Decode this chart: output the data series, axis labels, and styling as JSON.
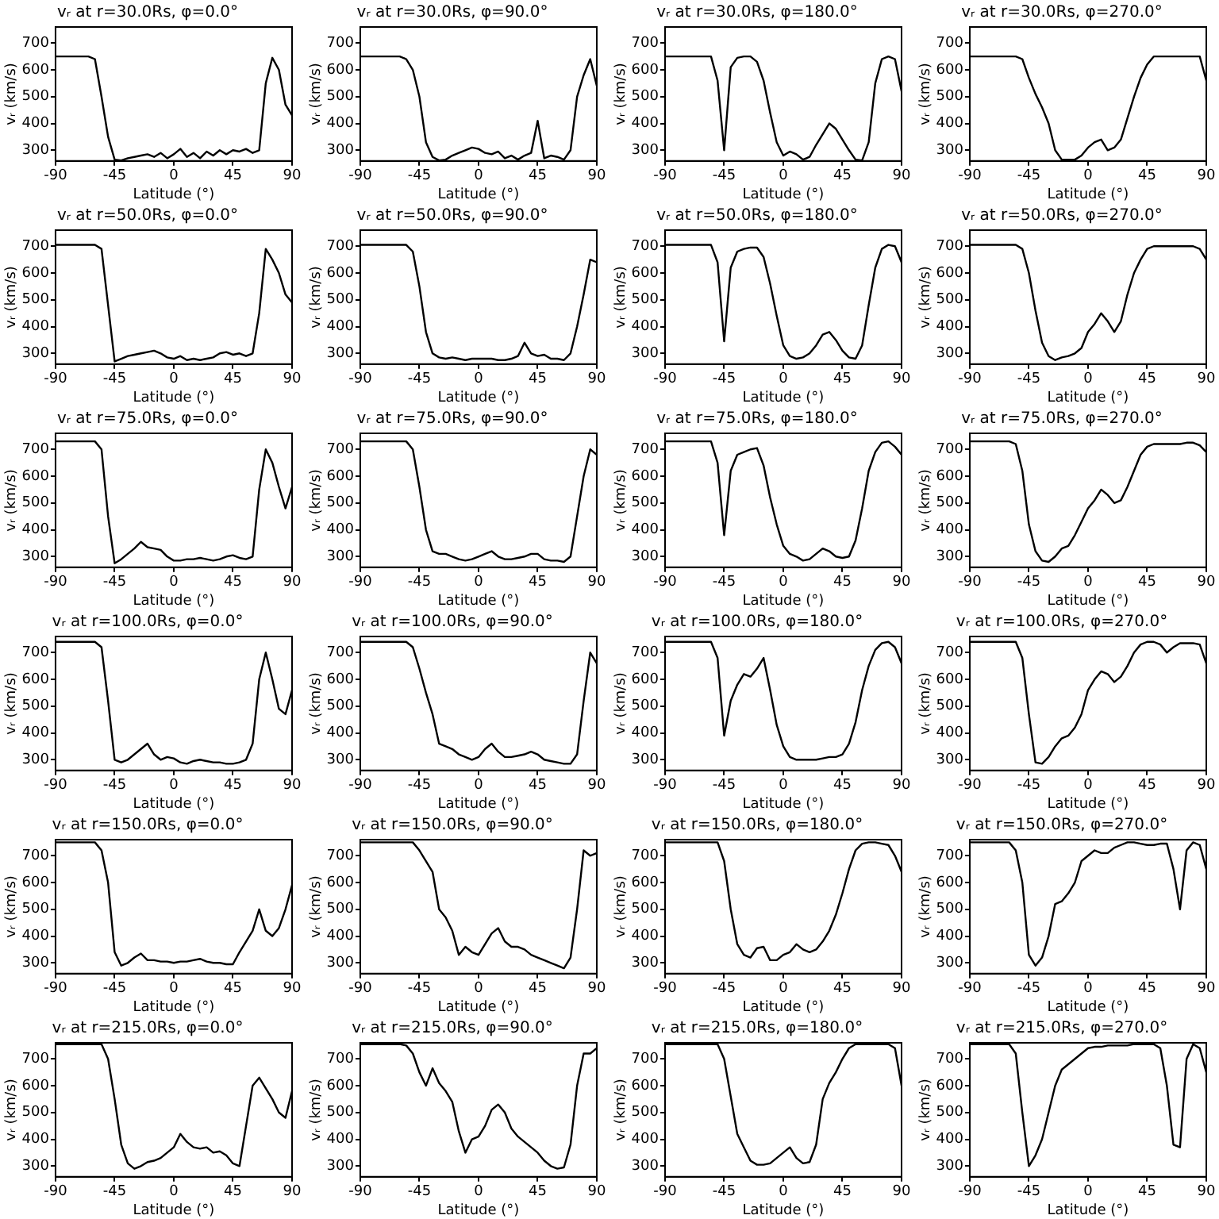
{
  "chart_data": [
    {
      "type": "line",
      "title": "vᵣ at r=30.0Rs, φ=0.0°",
      "xlabel": "Latitude (°)",
      "ylabel": "vᵣ (km/s)",
      "xlim": [
        -90,
        90
      ],
      "xticks": [
        -90,
        -45,
        0,
        45,
        90
      ],
      "ylim": [
        260,
        760
      ],
      "yticks": [
        300,
        400,
        500,
        600,
        700
      ],
      "color": "#000000",
      "x": [
        -90,
        -85,
        -80,
        -75,
        -70,
        -65,
        -60,
        -55,
        -50,
        -45,
        -40,
        -35,
        -30,
        -25,
        -20,
        -15,
        -10,
        -5,
        0,
        5,
        10,
        15,
        20,
        25,
        30,
        35,
        40,
        45,
        50,
        55,
        60,
        65,
        70,
        75,
        80,
        85,
        90
      ],
      "values": [
        650,
        650,
        650,
        650,
        650,
        650,
        640,
        500,
        350,
        265,
        262,
        270,
        275,
        280,
        285,
        275,
        290,
        270,
        285,
        305,
        275,
        290,
        270,
        295,
        280,
        300,
        285,
        300,
        295,
        305,
        290,
        300,
        550,
        645,
        600,
        470,
        430
      ]
    },
    {
      "type": "line",
      "title": "vᵣ at r=30.0Rs, φ=90.0°",
      "xlabel": "Latitude (°)",
      "ylabel": "vᵣ (km/s)",
      "xlim": [
        -90,
        90
      ],
      "xticks": [
        -90,
        -45,
        0,
        45,
        90
      ],
      "ylim": [
        260,
        760
      ],
      "yticks": [
        300,
        400,
        500,
        600,
        700
      ],
      "color": "#000000",
      "x": [
        -90,
        -85,
        -80,
        -75,
        -70,
        -65,
        -60,
        -55,
        -50,
        -45,
        -40,
        -35,
        -30,
        -25,
        -20,
        -15,
        -10,
        -5,
        0,
        5,
        10,
        15,
        20,
        25,
        30,
        35,
        40,
        45,
        50,
        55,
        60,
        65,
        70,
        75,
        80,
        85,
        90
      ],
      "values": [
        650,
        650,
        650,
        650,
        650,
        650,
        650,
        640,
        600,
        500,
        330,
        275,
        262,
        265,
        280,
        290,
        300,
        310,
        305,
        290,
        285,
        295,
        270,
        280,
        265,
        280,
        290,
        410,
        270,
        280,
        275,
        265,
        300,
        500,
        580,
        640,
        540
      ]
    },
    {
      "type": "line",
      "title": "vᵣ at r=30.0Rs, φ=180.0°",
      "xlabel": "Latitude (°)",
      "ylabel": "vᵣ (km/s)",
      "xlim": [
        -90,
        90
      ],
      "xticks": [
        -90,
        -45,
        0,
        45,
        90
      ],
      "ylim": [
        260,
        760
      ],
      "yticks": [
        300,
        400,
        500,
        600,
        700
      ],
      "color": "#000000",
      "x": [
        -90,
        -85,
        -80,
        -75,
        -70,
        -65,
        -60,
        -55,
        -50,
        -45,
        -40,
        -35,
        -30,
        -25,
        -20,
        -15,
        -10,
        -5,
        0,
        5,
        10,
        15,
        20,
        25,
        30,
        35,
        40,
        45,
        50,
        55,
        60,
        65,
        70,
        75,
        80,
        85,
        90
      ],
      "values": [
        650,
        650,
        650,
        650,
        650,
        650,
        650,
        650,
        560,
        300,
        610,
        645,
        650,
        650,
        630,
        560,
        440,
        330,
        280,
        295,
        285,
        265,
        275,
        320,
        360,
        400,
        380,
        340,
        300,
        265,
        262,
        330,
        550,
        640,
        650,
        640,
        520
      ]
    },
    {
      "type": "line",
      "title": "vᵣ at r=30.0Rs, φ=270.0°",
      "xlabel": "Latitude (°)",
      "ylabel": "vᵣ (km/s)",
      "xlim": [
        -90,
        90
      ],
      "xticks": [
        -90,
        -45,
        0,
        45,
        90
      ],
      "ylim": [
        260,
        760
      ],
      "yticks": [
        300,
        400,
        500,
        600,
        700
      ],
      "color": "#000000",
      "x": [
        -90,
        -85,
        -80,
        -75,
        -70,
        -65,
        -60,
        -55,
        -50,
        -45,
        -40,
        -35,
        -30,
        -25,
        -20,
        -15,
        -10,
        -5,
        0,
        5,
        10,
        15,
        20,
        25,
        30,
        35,
        40,
        45,
        50,
        55,
        60,
        65,
        70,
        75,
        80,
        85,
        90
      ],
      "values": [
        650,
        650,
        650,
        650,
        650,
        650,
        650,
        650,
        640,
        570,
        510,
        460,
        400,
        300,
        265,
        265,
        265,
        280,
        310,
        330,
        340,
        300,
        310,
        340,
        420,
        500,
        570,
        620,
        650,
        650,
        650,
        650,
        650,
        650,
        650,
        650,
        560
      ]
    },
    {
      "type": "line",
      "title": "vᵣ at r=50.0Rs, φ=0.0°",
      "xlabel": "Latitude (°)",
      "ylabel": "vᵣ (km/s)",
      "xlim": [
        -90,
        90
      ],
      "xticks": [
        -90,
        -45,
        0,
        45,
        90
      ],
      "ylim": [
        260,
        760
      ],
      "yticks": [
        300,
        400,
        500,
        600,
        700
      ],
      "color": "#000000",
      "x": [
        -90,
        -85,
        -80,
        -75,
        -70,
        -65,
        -60,
        -55,
        -50,
        -45,
        -40,
        -35,
        -30,
        -25,
        -20,
        -15,
        -10,
        -5,
        0,
        5,
        10,
        15,
        20,
        25,
        30,
        35,
        40,
        45,
        50,
        55,
        60,
        65,
        70,
        75,
        80,
        85,
        90
      ],
      "values": [
        705,
        705,
        705,
        705,
        705,
        705,
        705,
        690,
        480,
        270,
        280,
        290,
        295,
        300,
        305,
        310,
        300,
        285,
        280,
        290,
        275,
        280,
        275,
        280,
        285,
        300,
        305,
        295,
        300,
        290,
        300,
        450,
        690,
        650,
        600,
        520,
        490
      ]
    },
    {
      "type": "line",
      "title": "vᵣ at r=50.0Rs, φ=90.0°",
      "xlabel": "Latitude (°)",
      "ylabel": "vᵣ (km/s)",
      "xlim": [
        -90,
        90
      ],
      "xticks": [
        -90,
        -45,
        0,
        45,
        90
      ],
      "ylim": [
        260,
        760
      ],
      "yticks": [
        300,
        400,
        500,
        600,
        700
      ],
      "color": "#000000",
      "x": [
        -90,
        -85,
        -80,
        -75,
        -70,
        -65,
        -60,
        -55,
        -50,
        -45,
        -40,
        -35,
        -30,
        -25,
        -20,
        -15,
        -10,
        -5,
        0,
        5,
        10,
        15,
        20,
        25,
        30,
        35,
        40,
        45,
        50,
        55,
        60,
        65,
        70,
        75,
        80,
        85,
        90
      ],
      "values": [
        705,
        705,
        705,
        705,
        705,
        705,
        705,
        705,
        680,
        550,
        380,
        300,
        285,
        280,
        285,
        280,
        275,
        280,
        280,
        280,
        280,
        275,
        275,
        280,
        290,
        340,
        300,
        290,
        295,
        280,
        280,
        275,
        300,
        400,
        520,
        650,
        640
      ]
    },
    {
      "type": "line",
      "title": "vᵣ at r=50.0Rs, φ=180.0°",
      "xlabel": "Latitude (°)",
      "ylabel": "vᵣ (km/s)",
      "xlim": [
        -90,
        90
      ],
      "xticks": [
        -90,
        -45,
        0,
        45,
        90
      ],
      "ylim": [
        260,
        760
      ],
      "yticks": [
        300,
        400,
        500,
        600,
        700
      ],
      "color": "#000000",
      "x": [
        -90,
        -85,
        -80,
        -75,
        -70,
        -65,
        -60,
        -55,
        -50,
        -45,
        -40,
        -35,
        -30,
        -25,
        -20,
        -15,
        -10,
        -5,
        0,
        5,
        10,
        15,
        20,
        25,
        30,
        35,
        40,
        45,
        50,
        55,
        60,
        65,
        70,
        75,
        80,
        85,
        90
      ],
      "values": [
        705,
        705,
        705,
        705,
        705,
        705,
        705,
        705,
        640,
        345,
        620,
        680,
        690,
        695,
        695,
        660,
        560,
        440,
        330,
        290,
        280,
        285,
        300,
        330,
        370,
        380,
        350,
        310,
        285,
        280,
        330,
        480,
        620,
        690,
        705,
        700,
        640
      ]
    },
    {
      "type": "line",
      "title": "vᵣ at r=50.0Rs, φ=270.0°",
      "xlabel": "Latitude (°)",
      "ylabel": "vᵣ (km/s)",
      "xlim": [
        -90,
        90
      ],
      "xticks": [
        -90,
        -45,
        0,
        45,
        90
      ],
      "ylim": [
        260,
        760
      ],
      "yticks": [
        300,
        400,
        500,
        600,
        700
      ],
      "color": "#000000",
      "x": [
        -90,
        -85,
        -80,
        -75,
        -70,
        -65,
        -60,
        -55,
        -50,
        -45,
        -40,
        -35,
        -30,
        -25,
        -20,
        -15,
        -10,
        -5,
        0,
        5,
        10,
        15,
        20,
        25,
        30,
        35,
        40,
        45,
        50,
        55,
        60,
        65,
        70,
        75,
        80,
        85,
        90
      ],
      "values": [
        705,
        705,
        705,
        705,
        705,
        705,
        705,
        705,
        690,
        600,
        460,
        340,
        290,
        275,
        285,
        290,
        300,
        320,
        380,
        410,
        450,
        420,
        380,
        420,
        520,
        600,
        650,
        690,
        700,
        700,
        700,
        700,
        700,
        700,
        700,
        690,
        650
      ]
    },
    {
      "type": "line",
      "title": "vᵣ at r=75.0Rs, φ=0.0°",
      "xlabel": "Latitude (°)",
      "ylabel": "vᵣ (km/s)",
      "xlim": [
        -90,
        90
      ],
      "xticks": [
        -90,
        -45,
        0,
        45,
        90
      ],
      "ylim": [
        260,
        760
      ],
      "yticks": [
        300,
        400,
        500,
        600,
        700
      ],
      "color": "#000000",
      "x": [
        -90,
        -85,
        -80,
        -75,
        -70,
        -65,
        -60,
        -55,
        -50,
        -45,
        -40,
        -35,
        -30,
        -25,
        -20,
        -15,
        -10,
        -5,
        0,
        5,
        10,
        15,
        20,
        25,
        30,
        35,
        40,
        45,
        50,
        55,
        60,
        65,
        70,
        75,
        80,
        85,
        90
      ],
      "values": [
        730,
        730,
        730,
        730,
        730,
        730,
        730,
        700,
        450,
        275,
        290,
        310,
        330,
        355,
        335,
        330,
        325,
        300,
        285,
        285,
        290,
        290,
        295,
        290,
        285,
        290,
        300,
        305,
        295,
        290,
        300,
        550,
        700,
        650,
        560,
        480,
        560
      ]
    },
    {
      "type": "line",
      "title": "vᵣ at r=75.0Rs, φ=90.0°",
      "xlabel": "Latitude (°)",
      "ylabel": "vᵣ (km/s)",
      "xlim": [
        -90,
        90
      ],
      "xticks": [
        -90,
        -45,
        0,
        45,
        90
      ],
      "ylim": [
        260,
        760
      ],
      "yticks": [
        300,
        400,
        500,
        600,
        700
      ],
      "color": "#000000",
      "x": [
        -90,
        -85,
        -80,
        -75,
        -70,
        -65,
        -60,
        -55,
        -50,
        -45,
        -40,
        -35,
        -30,
        -25,
        -20,
        -15,
        -10,
        -5,
        0,
        5,
        10,
        15,
        20,
        25,
        30,
        35,
        40,
        45,
        50,
        55,
        60,
        65,
        70,
        75,
        80,
        85,
        90
      ],
      "values": [
        730,
        730,
        730,
        730,
        730,
        730,
        730,
        730,
        700,
        560,
        400,
        320,
        310,
        310,
        300,
        290,
        285,
        290,
        300,
        310,
        320,
        300,
        290,
        290,
        295,
        300,
        310,
        310,
        290,
        285,
        285,
        280,
        300,
        450,
        600,
        700,
        680
      ]
    },
    {
      "type": "line",
      "title": "vᵣ at r=75.0Rs, φ=180.0°",
      "xlabel": "Latitude (°)",
      "ylabel": "vᵣ (km/s)",
      "xlim": [
        -90,
        90
      ],
      "xticks": [
        -90,
        -45,
        0,
        45,
        90
      ],
      "ylim": [
        260,
        760
      ],
      "yticks": [
        300,
        400,
        500,
        600,
        700
      ],
      "color": "#000000",
      "x": [
        -90,
        -85,
        -80,
        -75,
        -70,
        -65,
        -60,
        -55,
        -50,
        -45,
        -40,
        -35,
        -30,
        -25,
        -20,
        -15,
        -10,
        -5,
        0,
        5,
        10,
        15,
        20,
        25,
        30,
        35,
        40,
        45,
        50,
        55,
        60,
        65,
        70,
        75,
        80,
        85,
        90
      ],
      "values": [
        730,
        730,
        730,
        730,
        730,
        730,
        730,
        730,
        650,
        380,
        620,
        680,
        690,
        700,
        705,
        640,
        520,
        420,
        340,
        310,
        300,
        285,
        290,
        310,
        330,
        320,
        300,
        295,
        300,
        360,
        480,
        620,
        690,
        725,
        730,
        710,
        680
      ]
    },
    {
      "type": "line",
      "title": "vᵣ at r=75.0Rs, φ=270.0°",
      "xlabel": "Latitude (°)",
      "ylabel": "vᵣ (km/s)",
      "xlim": [
        -90,
        90
      ],
      "xticks": [
        -90,
        -45,
        0,
        45,
        90
      ],
      "ylim": [
        260,
        760
      ],
      "yticks": [
        300,
        400,
        500,
        600,
        700
      ],
      "color": "#000000",
      "x": [
        -90,
        -85,
        -80,
        -75,
        -70,
        -65,
        -60,
        -55,
        -50,
        -45,
        -40,
        -35,
        -30,
        -25,
        -20,
        -15,
        -10,
        -5,
        0,
        5,
        10,
        15,
        20,
        25,
        30,
        35,
        40,
        45,
        50,
        55,
        60,
        65,
        70,
        75,
        80,
        85,
        90
      ],
      "values": [
        730,
        730,
        730,
        730,
        730,
        730,
        730,
        720,
        620,
        420,
        320,
        285,
        280,
        300,
        330,
        340,
        380,
        430,
        480,
        510,
        550,
        530,
        500,
        510,
        560,
        620,
        680,
        710,
        720,
        720,
        720,
        720,
        720,
        725,
        725,
        715,
        690
      ]
    },
    {
      "type": "line",
      "title": "vᵣ at r=100.0Rs, φ=0.0°",
      "xlabel": "Latitude (°)",
      "ylabel": "vᵣ (km/s)",
      "xlim": [
        -90,
        90
      ],
      "xticks": [
        -90,
        -45,
        0,
        45,
        90
      ],
      "ylim": [
        260,
        760
      ],
      "yticks": [
        300,
        400,
        500,
        600,
        700
      ],
      "color": "#000000",
      "x": [
        -90,
        -85,
        -80,
        -75,
        -70,
        -65,
        -60,
        -55,
        -50,
        -45,
        -40,
        -35,
        -30,
        -25,
        -20,
        -15,
        -10,
        -5,
        0,
        5,
        10,
        15,
        20,
        25,
        30,
        35,
        40,
        45,
        50,
        55,
        60,
        65,
        70,
        75,
        80,
        85,
        90
      ],
      "values": [
        740,
        740,
        740,
        740,
        740,
        740,
        740,
        720,
        520,
        300,
        290,
        300,
        320,
        340,
        360,
        320,
        300,
        310,
        305,
        290,
        285,
        295,
        300,
        295,
        290,
        290,
        285,
        285,
        290,
        300,
        360,
        600,
        700,
        600,
        490,
        470,
        560
      ]
    },
    {
      "type": "line",
      "title": "vᵣ at r=100.0Rs, φ=90.0°",
      "xlabel": "Latitude (°)",
      "ylabel": "vᵣ (km/s)",
      "xlim": [
        -90,
        90
      ],
      "xticks": [
        -90,
        -45,
        0,
        45,
        90
      ],
      "ylim": [
        260,
        760
      ],
      "yticks": [
        300,
        400,
        500,
        600,
        700
      ],
      "color": "#000000",
      "x": [
        -90,
        -85,
        -80,
        -75,
        -70,
        -65,
        -60,
        -55,
        -50,
        -45,
        -40,
        -35,
        -30,
        -25,
        -20,
        -15,
        -10,
        -5,
        0,
        5,
        10,
        15,
        20,
        25,
        30,
        35,
        40,
        45,
        50,
        55,
        60,
        65,
        70,
        75,
        80,
        85,
        90
      ],
      "values": [
        740,
        740,
        740,
        740,
        740,
        740,
        740,
        740,
        720,
        640,
        550,
        470,
        360,
        350,
        340,
        320,
        310,
        300,
        310,
        340,
        360,
        330,
        310,
        310,
        315,
        320,
        330,
        320,
        300,
        295,
        290,
        285,
        285,
        320,
        520,
        700,
        660
      ]
    },
    {
      "type": "line",
      "title": "vᵣ at r=100.0Rs, φ=180.0°",
      "xlabel": "Latitude (°)",
      "ylabel": "vᵣ (km/s)",
      "xlim": [
        -90,
        90
      ],
      "xticks": [
        -90,
        -45,
        0,
        45,
        90
      ],
      "ylim": [
        260,
        760
      ],
      "yticks": [
        300,
        400,
        500,
        600,
        700
      ],
      "color": "#000000",
      "x": [
        -90,
        -85,
        -80,
        -75,
        -70,
        -65,
        -60,
        -55,
        -50,
        -45,
        -40,
        -35,
        -30,
        -25,
        -20,
        -15,
        -10,
        -5,
        0,
        5,
        10,
        15,
        20,
        25,
        30,
        35,
        40,
        45,
        50,
        55,
        60,
        65,
        70,
        75,
        80,
        85,
        90
      ],
      "values": [
        740,
        740,
        740,
        740,
        740,
        740,
        740,
        740,
        680,
        390,
        520,
        580,
        620,
        610,
        640,
        680,
        560,
        430,
        350,
        310,
        300,
        300,
        300,
        300,
        305,
        310,
        310,
        320,
        360,
        440,
        560,
        650,
        710,
        735,
        740,
        720,
        660
      ]
    },
    {
      "type": "line",
      "title": "vᵣ at r=100.0Rs, φ=270.0°",
      "xlabel": "Latitude (°)",
      "ylabel": "vᵣ (km/s)",
      "xlim": [
        -90,
        90
      ],
      "xticks": [
        -90,
        -45,
        0,
        45,
        90
      ],
      "ylim": [
        260,
        760
      ],
      "yticks": [
        300,
        400,
        500,
        600,
        700
      ],
      "color": "#000000",
      "x": [
        -90,
        -85,
        -80,
        -75,
        -70,
        -65,
        -60,
        -55,
        -50,
        -45,
        -40,
        -35,
        -30,
        -25,
        -20,
        -15,
        -10,
        -5,
        0,
        5,
        10,
        15,
        20,
        25,
        30,
        35,
        40,
        45,
        50,
        55,
        60,
        65,
        70,
        75,
        80,
        85,
        90
      ],
      "values": [
        740,
        740,
        740,
        740,
        740,
        740,
        740,
        740,
        680,
        470,
        290,
        285,
        310,
        350,
        380,
        390,
        420,
        470,
        560,
        600,
        630,
        620,
        590,
        610,
        650,
        700,
        730,
        740,
        740,
        730,
        700,
        720,
        735,
        735,
        735,
        730,
        660
      ]
    },
    {
      "type": "line",
      "title": "vᵣ at r=150.0Rs, φ=0.0°",
      "xlabel": "Latitude (°)",
      "ylabel": "vᵣ (km/s)",
      "xlim": [
        -90,
        90
      ],
      "xticks": [
        -90,
        -45,
        0,
        45,
        90
      ],
      "ylim": [
        260,
        760
      ],
      "yticks": [
        300,
        400,
        500,
        600,
        700
      ],
      "color": "#000000",
      "x": [
        -90,
        -85,
        -80,
        -75,
        -70,
        -65,
        -60,
        -55,
        -50,
        -45,
        -40,
        -35,
        -30,
        -25,
        -20,
        -15,
        -10,
        -5,
        0,
        5,
        10,
        15,
        20,
        25,
        30,
        35,
        40,
        45,
        50,
        55,
        60,
        65,
        70,
        75,
        80,
        85,
        90
      ],
      "values": [
        750,
        750,
        750,
        750,
        750,
        750,
        750,
        720,
        600,
        340,
        290,
        300,
        320,
        335,
        310,
        310,
        305,
        305,
        300,
        305,
        305,
        310,
        315,
        305,
        300,
        300,
        295,
        295,
        340,
        380,
        420,
        500,
        420,
        400,
        430,
        500,
        590
      ]
    },
    {
      "type": "line",
      "title": "vᵣ at r=150.0Rs, φ=90.0°",
      "xlabel": "Latitude (°)",
      "ylabel": "vᵣ (km/s)",
      "xlim": [
        -90,
        90
      ],
      "xticks": [
        -90,
        -45,
        0,
        45,
        90
      ],
      "ylim": [
        260,
        760
      ],
      "yticks": [
        300,
        400,
        500,
        600,
        700
      ],
      "color": "#000000",
      "x": [
        -90,
        -85,
        -80,
        -75,
        -70,
        -65,
        -60,
        -55,
        -50,
        -45,
        -40,
        -35,
        -30,
        -25,
        -20,
        -15,
        -10,
        -5,
        0,
        5,
        10,
        15,
        20,
        25,
        30,
        35,
        40,
        45,
        50,
        55,
        60,
        65,
        70,
        75,
        80,
        85,
        90
      ],
      "values": [
        750,
        750,
        750,
        750,
        750,
        750,
        750,
        750,
        750,
        720,
        680,
        640,
        500,
        470,
        420,
        330,
        360,
        340,
        330,
        370,
        410,
        430,
        380,
        360,
        360,
        350,
        330,
        320,
        310,
        300,
        290,
        280,
        320,
        500,
        720,
        700,
        710
      ]
    },
    {
      "type": "line",
      "title": "vᵣ at r=150.0Rs, φ=180.0°",
      "xlabel": "Latitude (°)",
      "ylabel": "vᵣ (km/s)",
      "xlim": [
        -90,
        90
      ],
      "xticks": [
        -90,
        -45,
        0,
        45,
        90
      ],
      "ylim": [
        260,
        760
      ],
      "yticks": [
        300,
        400,
        500,
        600,
        700
      ],
      "color": "#000000",
      "x": [
        -90,
        -85,
        -80,
        -75,
        -70,
        -65,
        -60,
        -55,
        -50,
        -45,
        -40,
        -35,
        -30,
        -25,
        -20,
        -15,
        -10,
        -5,
        0,
        5,
        10,
        15,
        20,
        25,
        30,
        35,
        40,
        45,
        50,
        55,
        60,
        65,
        70,
        75,
        80,
        85,
        90
      ],
      "values": [
        750,
        750,
        750,
        750,
        750,
        750,
        750,
        750,
        750,
        680,
        500,
        370,
        330,
        320,
        355,
        360,
        310,
        310,
        330,
        340,
        370,
        350,
        340,
        350,
        380,
        420,
        480,
        560,
        650,
        720,
        745,
        750,
        750,
        745,
        740,
        700,
        640
      ]
    },
    {
      "type": "line",
      "title": "vᵣ at r=150.0Rs, φ=270.0°",
      "xlabel": "Latitude (°)",
      "ylabel": "vᵣ (km/s)",
      "xlim": [
        -90,
        90
      ],
      "xticks": [
        -90,
        -45,
        0,
        45,
        90
      ],
      "ylim": [
        260,
        760
      ],
      "yticks": [
        300,
        400,
        500,
        600,
        700
      ],
      "color": "#000000",
      "x": [
        -90,
        -85,
        -80,
        -75,
        -70,
        -65,
        -60,
        -55,
        -50,
        -45,
        -40,
        -35,
        -30,
        -25,
        -20,
        -15,
        -10,
        -5,
        0,
        5,
        10,
        15,
        20,
        25,
        30,
        35,
        40,
        45,
        50,
        55,
        60,
        65,
        70,
        75,
        80,
        85,
        90
      ],
      "values": [
        750,
        750,
        750,
        750,
        750,
        750,
        750,
        720,
        600,
        330,
        290,
        320,
        400,
        520,
        530,
        560,
        600,
        680,
        700,
        720,
        710,
        710,
        730,
        740,
        750,
        750,
        745,
        740,
        740,
        745,
        745,
        650,
        500,
        720,
        750,
        740,
        650
      ]
    },
    {
      "type": "line",
      "title": "vᵣ at r=215.0Rs, φ=0.0°",
      "xlabel": "Latitude (°)",
      "ylabel": "vᵣ (km/s)",
      "xlim": [
        -90,
        90
      ],
      "xticks": [
        -90,
        -45,
        0,
        45,
        90
      ],
      "ylim": [
        260,
        760
      ],
      "yticks": [
        300,
        400,
        500,
        600,
        700
      ],
      "color": "#000000",
      "x": [
        -90,
        -85,
        -80,
        -75,
        -70,
        -65,
        -60,
        -55,
        -50,
        -45,
        -40,
        -35,
        -30,
        -25,
        -20,
        -15,
        -10,
        -5,
        0,
        5,
        10,
        15,
        20,
        25,
        30,
        35,
        40,
        45,
        50,
        55,
        60,
        65,
        70,
        75,
        80,
        85,
        90
      ],
      "values": [
        755,
        755,
        755,
        755,
        755,
        755,
        755,
        755,
        700,
        550,
        380,
        310,
        290,
        300,
        315,
        320,
        330,
        350,
        370,
        420,
        390,
        370,
        365,
        370,
        350,
        355,
        340,
        310,
        300,
        450,
        600,
        630,
        590,
        550,
        500,
        480,
        580
      ]
    },
    {
      "type": "line",
      "title": "vᵣ at r=215.0Rs, φ=90.0°",
      "xlabel": "Latitude (°)",
      "ylabel": "vᵣ (km/s)",
      "xlim": [
        -90,
        90
      ],
      "xticks": [
        -90,
        -45,
        0,
        45,
        90
      ],
      "ylim": [
        260,
        760
      ],
      "yticks": [
        300,
        400,
        500,
        600,
        700
      ],
      "color": "#000000",
      "x": [
        -90,
        -85,
        -80,
        -75,
        -70,
        -65,
        -60,
        -55,
        -50,
        -45,
        -40,
        -35,
        -30,
        -25,
        -20,
        -15,
        -10,
        -5,
        0,
        5,
        10,
        15,
        20,
        25,
        30,
        35,
        40,
        45,
        50,
        55,
        60,
        65,
        70,
        75,
        80,
        85,
        90
      ],
      "values": [
        755,
        755,
        755,
        755,
        755,
        755,
        755,
        750,
        720,
        650,
        600,
        665,
        610,
        580,
        540,
        430,
        350,
        400,
        410,
        450,
        510,
        530,
        500,
        440,
        410,
        390,
        370,
        350,
        320,
        300,
        290,
        295,
        380,
        600,
        720,
        720,
        740
      ]
    },
    {
      "type": "line",
      "title": "vᵣ at r=215.0Rs, φ=180.0°",
      "xlabel": "Latitude (°)",
      "ylabel": "vᵣ (km/s)",
      "xlim": [
        -90,
        90
      ],
      "xticks": [
        -90,
        -45,
        0,
        45,
        90
      ],
      "ylim": [
        260,
        760
      ],
      "yticks": [
        300,
        400,
        500,
        600,
        700
      ],
      "color": "#000000",
      "x": [
        -90,
        -85,
        -80,
        -75,
        -70,
        -65,
        -60,
        -55,
        -50,
        -45,
        -40,
        -35,
        -30,
        -25,
        -20,
        -15,
        -10,
        -5,
        0,
        5,
        10,
        15,
        20,
        25,
        30,
        35,
        40,
        45,
        50,
        55,
        60,
        65,
        70,
        75,
        80,
        85,
        90
      ],
      "values": [
        755,
        755,
        755,
        755,
        755,
        755,
        755,
        755,
        755,
        700,
        560,
        420,
        370,
        320,
        305,
        305,
        310,
        330,
        350,
        370,
        330,
        310,
        315,
        380,
        550,
        610,
        650,
        700,
        740,
        755,
        755,
        755,
        755,
        755,
        755,
        740,
        600
      ]
    },
    {
      "type": "line",
      "title": "vᵣ at r=215.0Rs, φ=270.0°",
      "xlabel": "Latitude (°)",
      "ylabel": "vᵣ (km/s)",
      "xlim": [
        -90,
        90
      ],
      "xticks": [
        -90,
        -45,
        0,
        45,
        90
      ],
      "ylim": [
        260,
        760
      ],
      "yticks": [
        300,
        400,
        500,
        600,
        700
      ],
      "color": "#000000",
      "x": [
        -90,
        -85,
        -80,
        -75,
        -70,
        -65,
        -60,
        -55,
        -50,
        -45,
        -40,
        -35,
        -30,
        -25,
        -20,
        -15,
        -10,
        -5,
        0,
        5,
        10,
        15,
        20,
        25,
        30,
        35,
        40,
        45,
        50,
        55,
        60,
        65,
        70,
        75,
        80,
        85,
        90
      ],
      "values": [
        755,
        755,
        755,
        755,
        755,
        755,
        755,
        720,
        500,
        300,
        340,
        400,
        500,
        600,
        660,
        680,
        700,
        720,
        740,
        745,
        745,
        750,
        750,
        750,
        750,
        755,
        755,
        755,
        755,
        740,
        600,
        380,
        370,
        700,
        755,
        740,
        650
      ]
    }
  ]
}
